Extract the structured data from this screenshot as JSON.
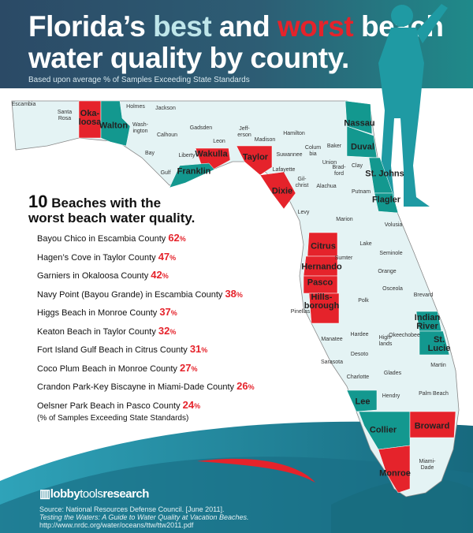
{
  "header": {
    "title_part1": "Florida’s ",
    "title_best": "best",
    "title_mid": " and ",
    "title_worst": "worst",
    "title_part2": " beach",
    "title_line2": "water quality by county.",
    "subtitle": "Based upon average % of Samples Exceeding State Standards"
  },
  "colors": {
    "best": "#13988f",
    "worst": "#e5232b",
    "county": "#e4f3f4",
    "header": "#2b4a66"
  },
  "counties": [
    {
      "name": "Escambia",
      "status": "neutral"
    },
    {
      "name": "Santa\nRosa",
      "status": "neutral"
    },
    {
      "name": "Oka-\nloosa",
      "status": "worst"
    },
    {
      "name": "Walton",
      "status": "best"
    },
    {
      "name": "Holmes",
      "status": "neutral"
    },
    {
      "name": "Jackson",
      "status": "neutral"
    },
    {
      "name": "Wash-\nington",
      "status": "neutral"
    },
    {
      "name": "Calhoun",
      "status": "neutral"
    },
    {
      "name": "Gadsden",
      "status": "neutral"
    },
    {
      "name": "Jeff-\nerson",
      "status": "neutral"
    },
    {
      "name": "Hamilton",
      "status": "neutral"
    },
    {
      "name": "Madison",
      "status": "neutral"
    },
    {
      "name": "Suwannee",
      "status": "neutral"
    },
    {
      "name": "Baker",
      "status": "neutral"
    },
    {
      "name": "Nassau",
      "status": "best"
    },
    {
      "name": "Duval",
      "status": "best"
    },
    {
      "name": "Leon",
      "status": "neutral"
    },
    {
      "name": "Bay",
      "status": "neutral"
    },
    {
      "name": "Liberty",
      "status": "neutral"
    },
    {
      "name": "Wakulla",
      "status": "worst"
    },
    {
      "name": "Taylor",
      "status": "worst"
    },
    {
      "name": "Colum\nbia",
      "status": "neutral"
    },
    {
      "name": "Union",
      "status": "neutral"
    },
    {
      "name": "Brad-\nford",
      "status": "neutral"
    },
    {
      "name": "Clay",
      "status": "neutral"
    },
    {
      "name": "Gulf",
      "status": "neutral"
    },
    {
      "name": "Franklin",
      "status": "best"
    },
    {
      "name": "Lafayette",
      "status": "neutral"
    },
    {
      "name": "Gil-\nchrist",
      "status": "neutral"
    },
    {
      "name": "Alachua",
      "status": "neutral"
    },
    {
      "name": "Putnam",
      "status": "neutral"
    },
    {
      "name": "St. Johns",
      "status": "best"
    },
    {
      "name": "Dixie",
      "status": "worst"
    },
    {
      "name": "Flagler",
      "status": "best"
    },
    {
      "name": "Levy",
      "status": "neutral"
    },
    {
      "name": "Marion",
      "status": "neutral"
    },
    {
      "name": "Volusia",
      "status": "neutral"
    },
    {
      "name": "Citrus",
      "status": "worst"
    },
    {
      "name": "Lake",
      "status": "neutral"
    },
    {
      "name": "Seminole",
      "status": "neutral"
    },
    {
      "name": "Sumter",
      "status": "neutral"
    },
    {
      "name": "Hernando",
      "status": "worst"
    },
    {
      "name": "Orange",
      "status": "neutral"
    },
    {
      "name": "Brevard",
      "status": "neutral"
    },
    {
      "name": "Pasco",
      "status": "worst"
    },
    {
      "name": "Osceola",
      "status": "neutral"
    },
    {
      "name": "Hills-\nborough",
      "status": "worst"
    },
    {
      "name": "Pinellas",
      "status": "neutral"
    },
    {
      "name": "Polk",
      "status": "neutral"
    },
    {
      "name": "Indian\nRiver",
      "status": "best"
    },
    {
      "name": "Manatee",
      "status": "neutral"
    },
    {
      "name": "Hardee",
      "status": "neutral"
    },
    {
      "name": "High-\nlands",
      "status": "neutral"
    },
    {
      "name": "Okeechobee",
      "status": "neutral"
    },
    {
      "name": "St. Lucie",
      "status": "best"
    },
    {
      "name": "Sarasota",
      "status": "neutral"
    },
    {
      "name": "Desoto",
      "status": "neutral"
    },
    {
      "name": "Glades",
      "status": "neutral"
    },
    {
      "name": "Martin",
      "status": "neutral"
    },
    {
      "name": "Charlotte",
      "status": "neutral"
    },
    {
      "name": "Hendry",
      "status": "neutral"
    },
    {
      "name": "Palm Beach",
      "status": "neutral"
    },
    {
      "name": "Lee",
      "status": "best"
    },
    {
      "name": "Collier",
      "status": "best"
    },
    {
      "name": "Broward",
      "status": "worst"
    },
    {
      "name": "Miami-\nDade",
      "status": "neutral"
    },
    {
      "name": "Monroe",
      "status": "worst"
    }
  ],
  "worst_list": {
    "title_num": "10",
    "title_rest": " Beaches with the",
    "title_line2": "worst beach water quality.",
    "items": [
      {
        "beach": "Bayou Chico in Escambia County ",
        "value": "62"
      },
      {
        "beach": "Hagen’s Cove in Taylor County ",
        "value": "47"
      },
      {
        "beach": "Garniers in Okaloosa County ",
        "value": "42"
      },
      {
        "beach": "Navy Point (Bayou Grande) in Escambia County ",
        "value": "38"
      },
      {
        "beach": "Higgs Beach in Monroe County ",
        "value": "37"
      },
      {
        "beach": "Keaton Beach in Taylor County ",
        "value": "32"
      },
      {
        "beach": "Fort Island Gulf Beach in Citrus County ",
        "value": "31"
      },
      {
        "beach": "Coco Plum Beach in Monroe County ",
        "value": "27"
      },
      {
        "beach": "Crandon Park-Key Biscayne in Miami-Dade County ",
        "value": "26"
      },
      {
        "beach": "Oelsner Park Beach in Pasco County ",
        "value": "24"
      }
    ],
    "pct_sign": "%",
    "note": "(% of Samples Exceeding State Standards)"
  },
  "footer": {
    "logo_bold1": "lobby",
    "logo_thin": "tools",
    "logo_bold2": "research",
    "source_line1": "Source: National Resources Defense Council. [June 2011].",
    "source_line2": "Testing the Waters: A Guide to Water Quality at Vacation Beaches.",
    "source_line3": "http://www.nrdc.org/water/oceans/ttw/ttw2011.pdf"
  }
}
